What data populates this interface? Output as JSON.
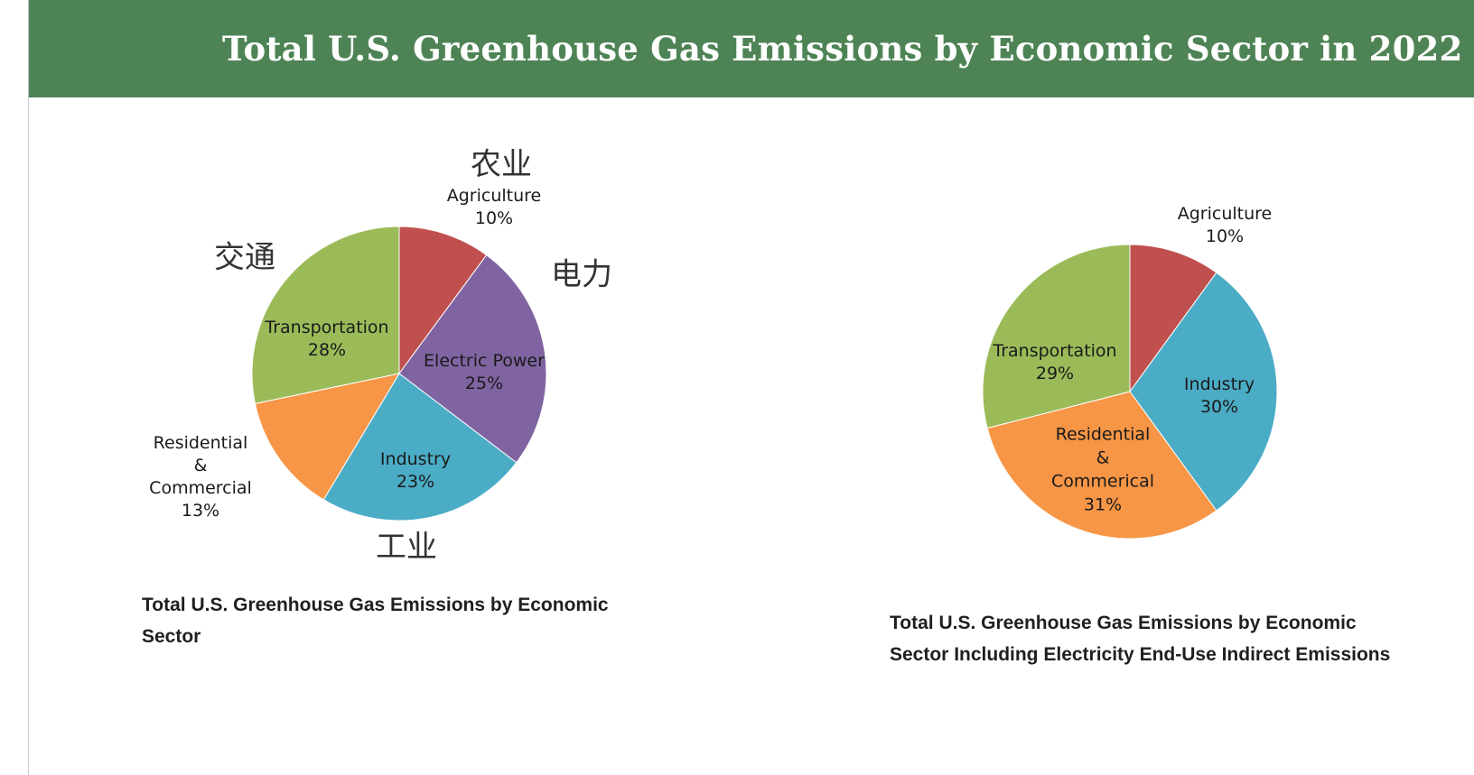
{
  "header": {
    "title": "Total U.S. Greenhouse Gas Emissions by Economic Sector in 2022",
    "background_color": "#4e8455"
  },
  "colors": {
    "agriculture": "#c0504d",
    "electric_power": "#8064a2",
    "industry": "#4bacc6",
    "residential_commercial": "#f79646",
    "transportation": "#9bbb59"
  },
  "captions": {
    "chart1": "Total U.S. Greenhouse Gas Emissions by Economic Sector",
    "chart2": "Total U.S. Greenhouse Gas Emissions by Economic Sector Including Electricity End-Use Indirect Emissions"
  },
  "chart_data": [
    {
      "type": "pie",
      "title": "Total U.S. Greenhouse Gas Emissions by Economic Sector",
      "slices": [
        {
          "name": "Agriculture",
          "label": [
            "Agriculture",
            "10%"
          ],
          "value": 10,
          "color": "#c0504d",
          "annotation": "农业"
        },
        {
          "name": "Electric Power",
          "label": [
            "Electric Power",
            "25%"
          ],
          "value": 25,
          "color": "#8064a2",
          "annotation": "电力"
        },
        {
          "name": "Industry",
          "label": [
            "Industry",
            "23%"
          ],
          "value": 23,
          "color": "#4bacc6",
          "annotation": "工业"
        },
        {
          "name": "Residential & Commercial",
          "label": [
            "Residential",
            "&",
            "Commercial",
            "13%"
          ],
          "value": 13,
          "color": "#f79646",
          "annotation": ""
        },
        {
          "name": "Transportation",
          "label": [
            "Transportation",
            "28%"
          ],
          "value": 28,
          "color": "#9bbb59",
          "annotation": "交通"
        }
      ]
    },
    {
      "type": "pie",
      "title": "Total U.S. Greenhouse Gas Emissions by Economic Sector Including Electricity End-Use Indirect Emissions",
      "slices": [
        {
          "name": "Agriculture",
          "label": [
            "Agriculture",
            "10%"
          ],
          "value": 10,
          "color": "#c0504d"
        },
        {
          "name": "Industry",
          "label": [
            "Industry",
            "30%"
          ],
          "value": 30,
          "color": "#4bacc6"
        },
        {
          "name": "Residential & Commerical",
          "label": [
            "Residential",
            "&",
            "Commerical",
            "31%"
          ],
          "value": 31,
          "color": "#f79646"
        },
        {
          "name": "Transportation",
          "label": [
            "Transportation",
            "29%"
          ],
          "value": 29,
          "color": "#9bbb59"
        }
      ]
    }
  ]
}
